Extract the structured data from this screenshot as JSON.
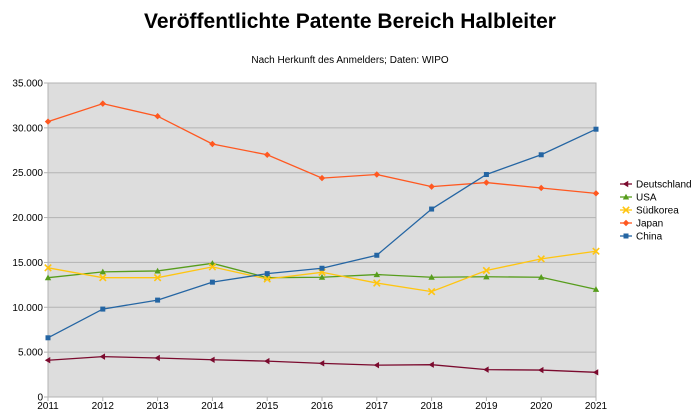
{
  "chart_data": {
    "type": "line",
    "title": "Veröffentlichte Patente Bereich Halbleiter",
    "subtitle": "Nach Herkunft des Anmelders; Daten: WIPO",
    "xlabel": "",
    "ylabel": "",
    "categories": [
      "2011",
      "2012",
      "2013",
      "2014",
      "2015",
      "2016",
      "2017",
      "2018",
      "2019",
      "2020",
      "2021"
    ],
    "ylim": [
      0,
      35000
    ],
    "yticks": [
      0,
      5000,
      10000,
      15000,
      20000,
      25000,
      30000,
      35000
    ],
    "ytick_labels": [
      "0",
      "5.000",
      "10.000",
      "15.000",
      "20.000",
      "25.000",
      "30.000",
      "35.000"
    ],
    "grid": true,
    "legend_position": "right",
    "series": [
      {
        "name": "Deutschland",
        "color": "#7b0a2e",
        "marker": "left-arrow",
        "values": [
          4100,
          4500,
          4350,
          4150,
          4000,
          3750,
          3550,
          3600,
          3050,
          3000,
          2750
        ]
      },
      {
        "name": "USA",
        "color": "#579d1c",
        "marker": "triangle",
        "values": [
          13300,
          13950,
          14050,
          14900,
          13300,
          13350,
          13650,
          13350,
          13400,
          13350,
          12000
        ]
      },
      {
        "name": "Südkorea",
        "color": "#ffc510",
        "marker": "cross",
        "values": [
          14400,
          13300,
          13300,
          14500,
          13150,
          13900,
          12700,
          11750,
          14100,
          15400,
          16250
        ]
      },
      {
        "name": "Japan",
        "color": "#ff5820",
        "marker": "diamond",
        "values": [
          30700,
          32700,
          31300,
          28200,
          27000,
          24400,
          24800,
          23450,
          23900,
          23300,
          22700
        ]
      },
      {
        "name": "China",
        "color": "#2465a3",
        "marker": "square",
        "values": [
          6600,
          9800,
          10800,
          12800,
          13750,
          14350,
          15800,
          20950,
          24800,
          27000,
          29850
        ]
      }
    ]
  }
}
